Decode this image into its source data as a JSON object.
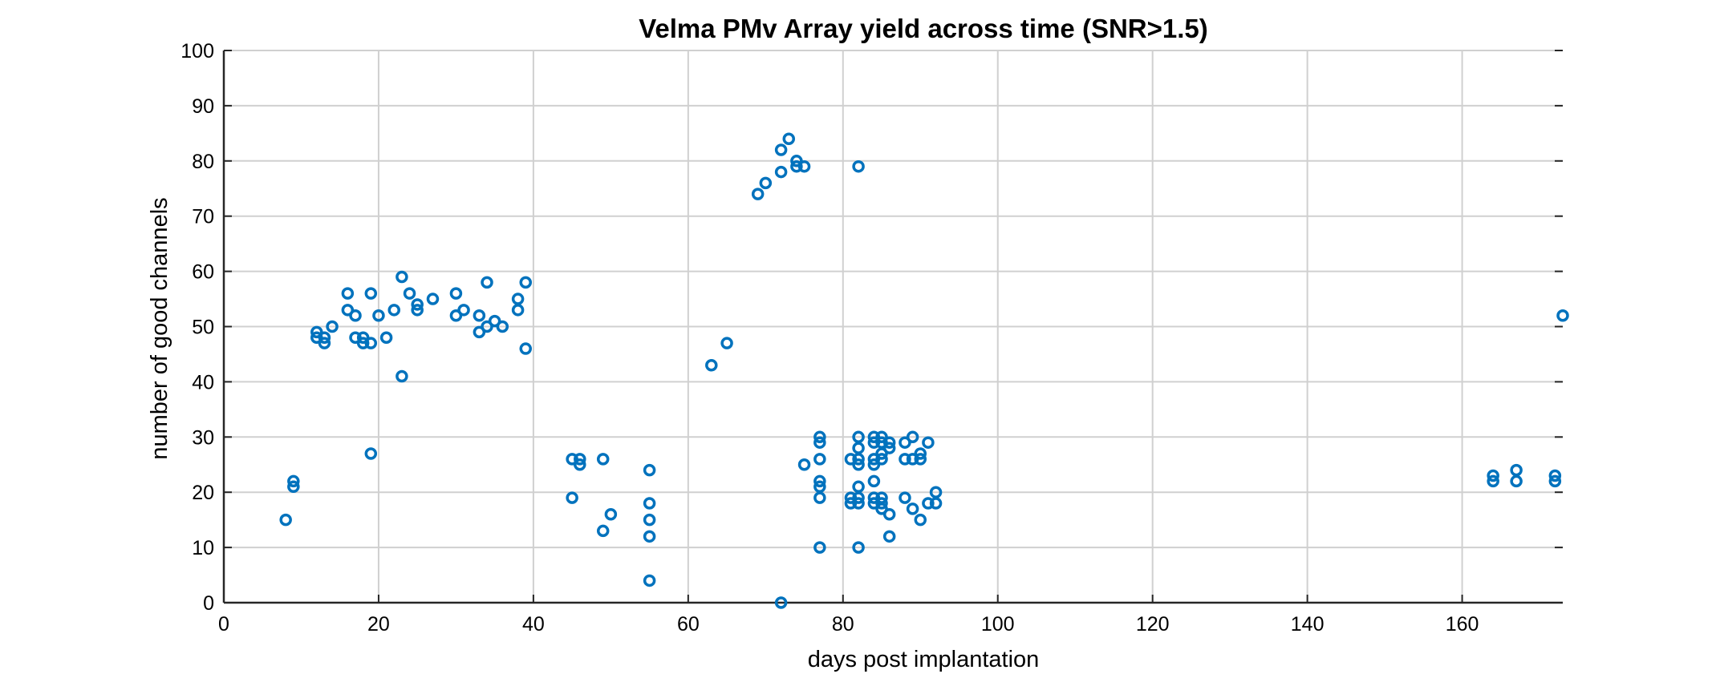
{
  "chart_data": {
    "type": "scatter",
    "title": "Velma PMv Array yield across time (SNR>1.5)",
    "xlabel": "days post implantation",
    "ylabel": "number of good channels",
    "xlim": [
      0,
      173
    ],
    "ylim": [
      0,
      100
    ],
    "xticks": [
      0,
      20,
      40,
      60,
      80,
      100,
      120,
      140,
      160
    ],
    "yticks": [
      0,
      10,
      20,
      30,
      40,
      50,
      60,
      70,
      80,
      90,
      100
    ],
    "grid": true,
    "marker": "circle-open",
    "color": "#0072BD",
    "points": [
      [
        8,
        15
      ],
      [
        9,
        22
      ],
      [
        9,
        21
      ],
      [
        12,
        49
      ],
      [
        12,
        48
      ],
      [
        13,
        48
      ],
      [
        13,
        47
      ],
      [
        14,
        50
      ],
      [
        16,
        56
      ],
      [
        16,
        53
      ],
      [
        17,
        52
      ],
      [
        17,
        48
      ],
      [
        18,
        48
      ],
      [
        18,
        47
      ],
      [
        19,
        56
      ],
      [
        19,
        47
      ],
      [
        19,
        27
      ],
      [
        20,
        52
      ],
      [
        21,
        48
      ],
      [
        22,
        53
      ],
      [
        23,
        59
      ],
      [
        23,
        41
      ],
      [
        24,
        56
      ],
      [
        25,
        54
      ],
      [
        25,
        53
      ],
      [
        27,
        55
      ],
      [
        30,
        56
      ],
      [
        30,
        52
      ],
      [
        31,
        53
      ],
      [
        33,
        52
      ],
      [
        33,
        49
      ],
      [
        34,
        58
      ],
      [
        34,
        50
      ],
      [
        35,
        51
      ],
      [
        36,
        50
      ],
      [
        38,
        55
      ],
      [
        38,
        53
      ],
      [
        39,
        58
      ],
      [
        39,
        46
      ],
      [
        45,
        26
      ],
      [
        45,
        19
      ],
      [
        46,
        26
      ],
      [
        46,
        25
      ],
      [
        49,
        26
      ],
      [
        49,
        13
      ],
      [
        50,
        16
      ],
      [
        55,
        24
      ],
      [
        55,
        18
      ],
      [
        55,
        15
      ],
      [
        55,
        12
      ],
      [
        55,
        4
      ],
      [
        63,
        43
      ],
      [
        65,
        47
      ],
      [
        69,
        74
      ],
      [
        70,
        76
      ],
      [
        72,
        82
      ],
      [
        72,
        78
      ],
      [
        72,
        0
      ],
      [
        73,
        84
      ],
      [
        74,
        80
      ],
      [
        74,
        79
      ],
      [
        75,
        79
      ],
      [
        75,
        25
      ],
      [
        77,
        30
      ],
      [
        77,
        29
      ],
      [
        77,
        26
      ],
      [
        77,
        22
      ],
      [
        77,
        21
      ],
      [
        77,
        19
      ],
      [
        77,
        10
      ],
      [
        81,
        26
      ],
      [
        81,
        19
      ],
      [
        81,
        18
      ],
      [
        82,
        30
      ],
      [
        82,
        28
      ],
      [
        82,
        26
      ],
      [
        82,
        25
      ],
      [
        82,
        21
      ],
      [
        82,
        19
      ],
      [
        82,
        18
      ],
      [
        82,
        10
      ],
      [
        82,
        79
      ],
      [
        84,
        30
      ],
      [
        84,
        29
      ],
      [
        84,
        26
      ],
      [
        84,
        25
      ],
      [
        84,
        22
      ],
      [
        84,
        19
      ],
      [
        84,
        18
      ],
      [
        85,
        30
      ],
      [
        85,
        29
      ],
      [
        85,
        27
      ],
      [
        85,
        26
      ],
      [
        85,
        19
      ],
      [
        85,
        18
      ],
      [
        85,
        17
      ],
      [
        86,
        29
      ],
      [
        86,
        28
      ],
      [
        86,
        16
      ],
      [
        86,
        12
      ],
      [
        88,
        29
      ],
      [
        88,
        26
      ],
      [
        88,
        19
      ],
      [
        89,
        30
      ],
      [
        89,
        26
      ],
      [
        89,
        17
      ],
      [
        90,
        27
      ],
      [
        90,
        26
      ],
      [
        90,
        15
      ],
      [
        91,
        29
      ],
      [
        91,
        18
      ],
      [
        92,
        20
      ],
      [
        92,
        18
      ],
      [
        164,
        23
      ],
      [
        164,
        22
      ],
      [
        167,
        24
      ],
      [
        167,
        22
      ],
      [
        172,
        23
      ],
      [
        172,
        22
      ],
      [
        173,
        52
      ]
    ]
  }
}
